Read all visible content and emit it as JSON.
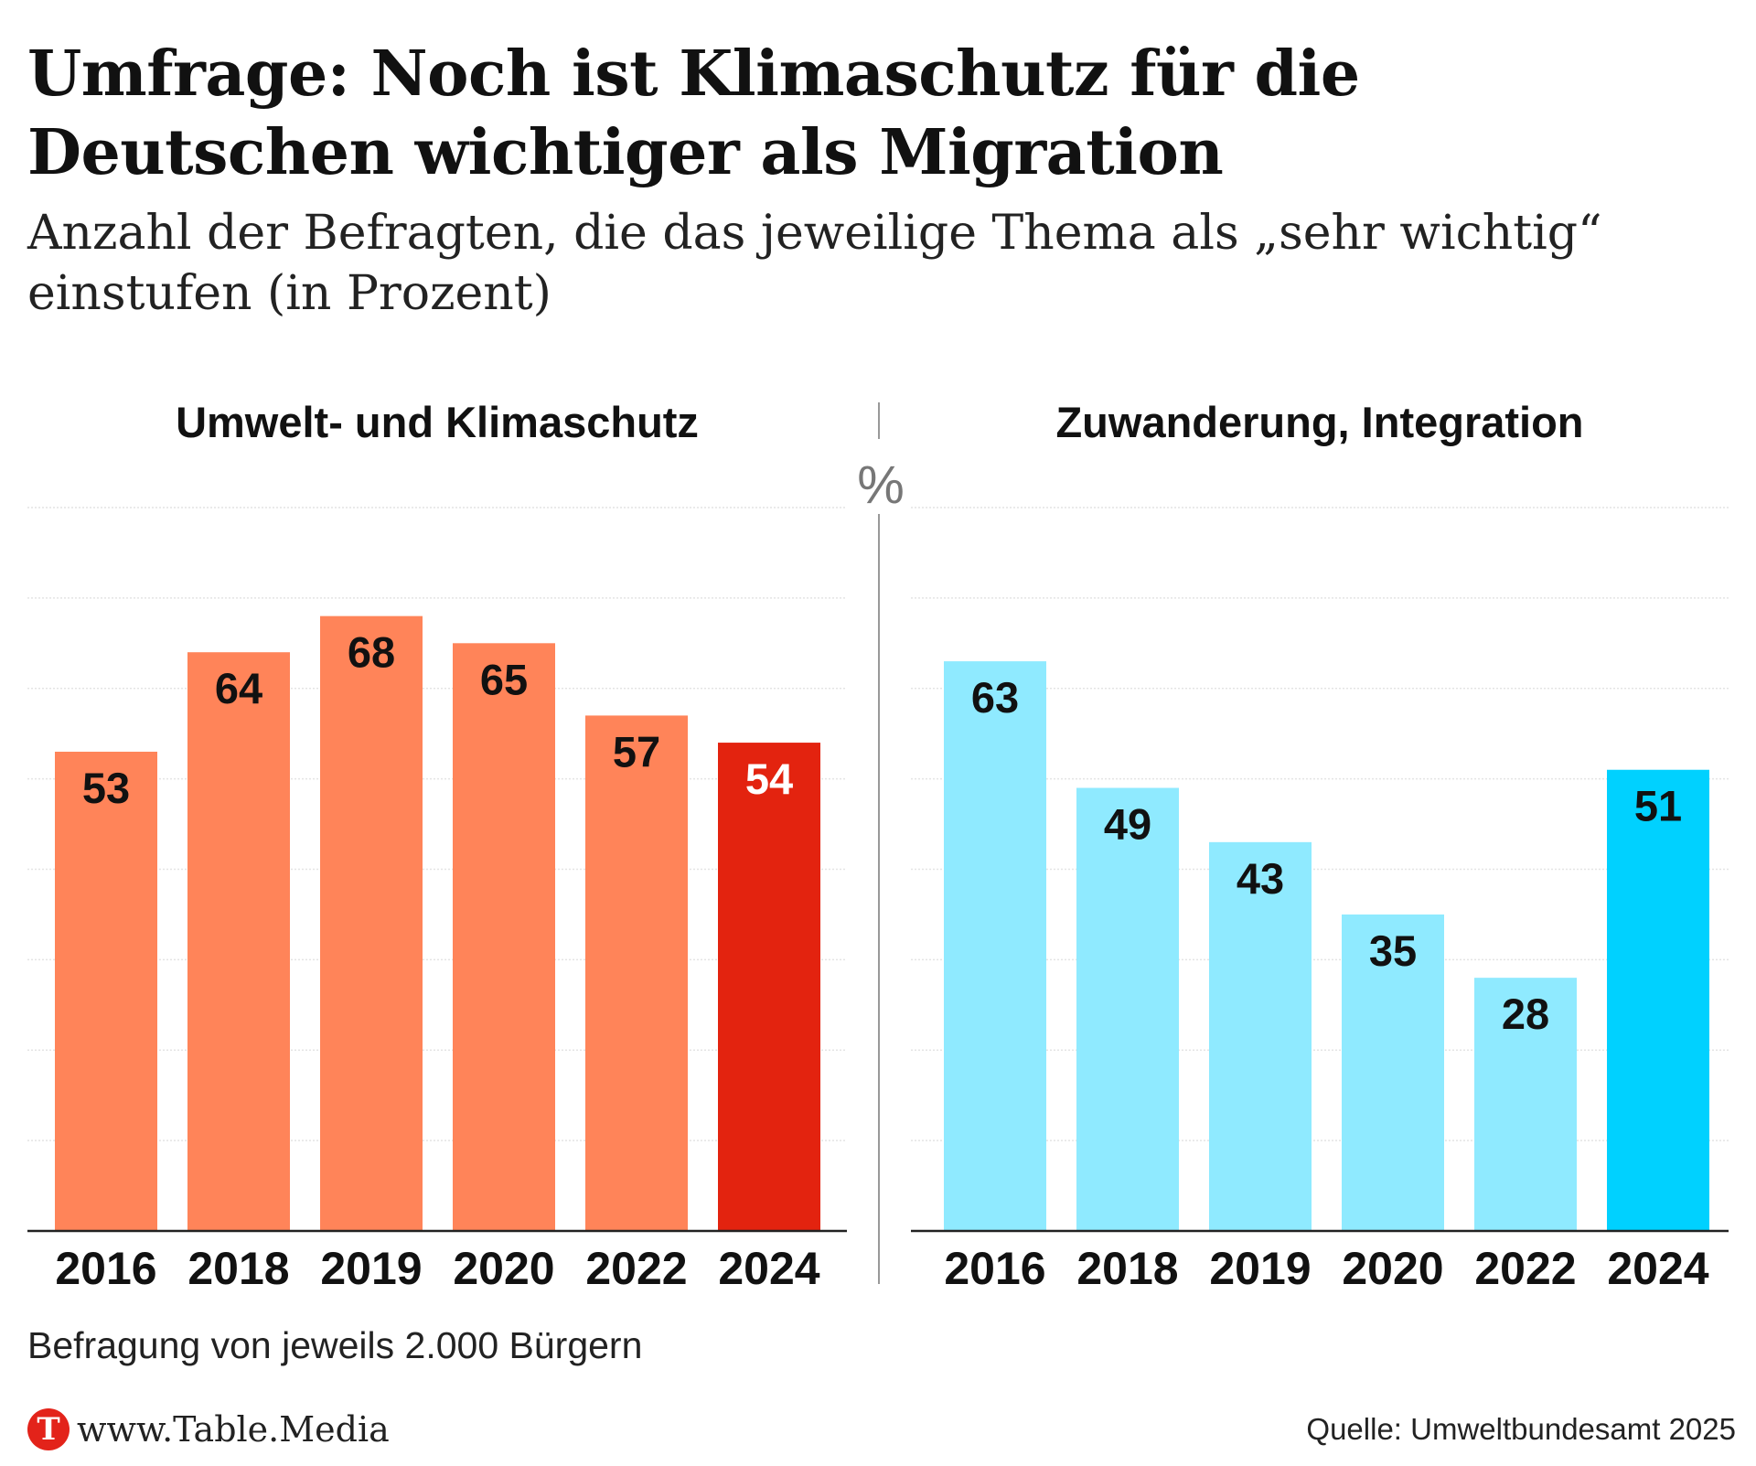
{
  "header": {
    "title": "Umfrage: Noch ist Klimaschutz für die Deutschen wichtiger als Migration",
    "subtitle": "Anzahl der Befragten, die das jeweilige Thema als „sehr wichtig“ einstufen (in Prozent)"
  },
  "unit_label": "%",
  "chart_data": [
    {
      "type": "bar",
      "title": "Umwelt- und Klimaschutz",
      "categories": [
        "2016",
        "2018",
        "2019",
        "2020",
        "2022",
        "2024"
      ],
      "values": [
        53,
        64,
        68,
        65,
        57,
        54
      ],
      "ylim": [
        0,
        80
      ],
      "grid": true,
      "colors": {
        "bar": "#ff8459",
        "highlight": "#e3230f",
        "label": "#111111",
        "highlight_label": "#ffffff"
      },
      "highlight_index": 5
    },
    {
      "type": "bar",
      "title": "Zuwanderung, Integration",
      "categories": [
        "2016",
        "2018",
        "2019",
        "2020",
        "2022",
        "2024"
      ],
      "values": [
        63,
        49,
        43,
        35,
        28,
        51
      ],
      "ylim": [
        0,
        80
      ],
      "grid": true,
      "colors": {
        "bar": "#8feaff",
        "highlight": "#00d1ff",
        "label": "#111111",
        "highlight_label": "#111111"
      },
      "highlight_index": 5
    }
  ],
  "footer": {
    "note": "Befragung von jeweils 2.000 Bürgern",
    "logo_letter": "T",
    "logo_text": "www.Table.Media",
    "source": "Quelle: Umweltbundesamt 2025"
  }
}
